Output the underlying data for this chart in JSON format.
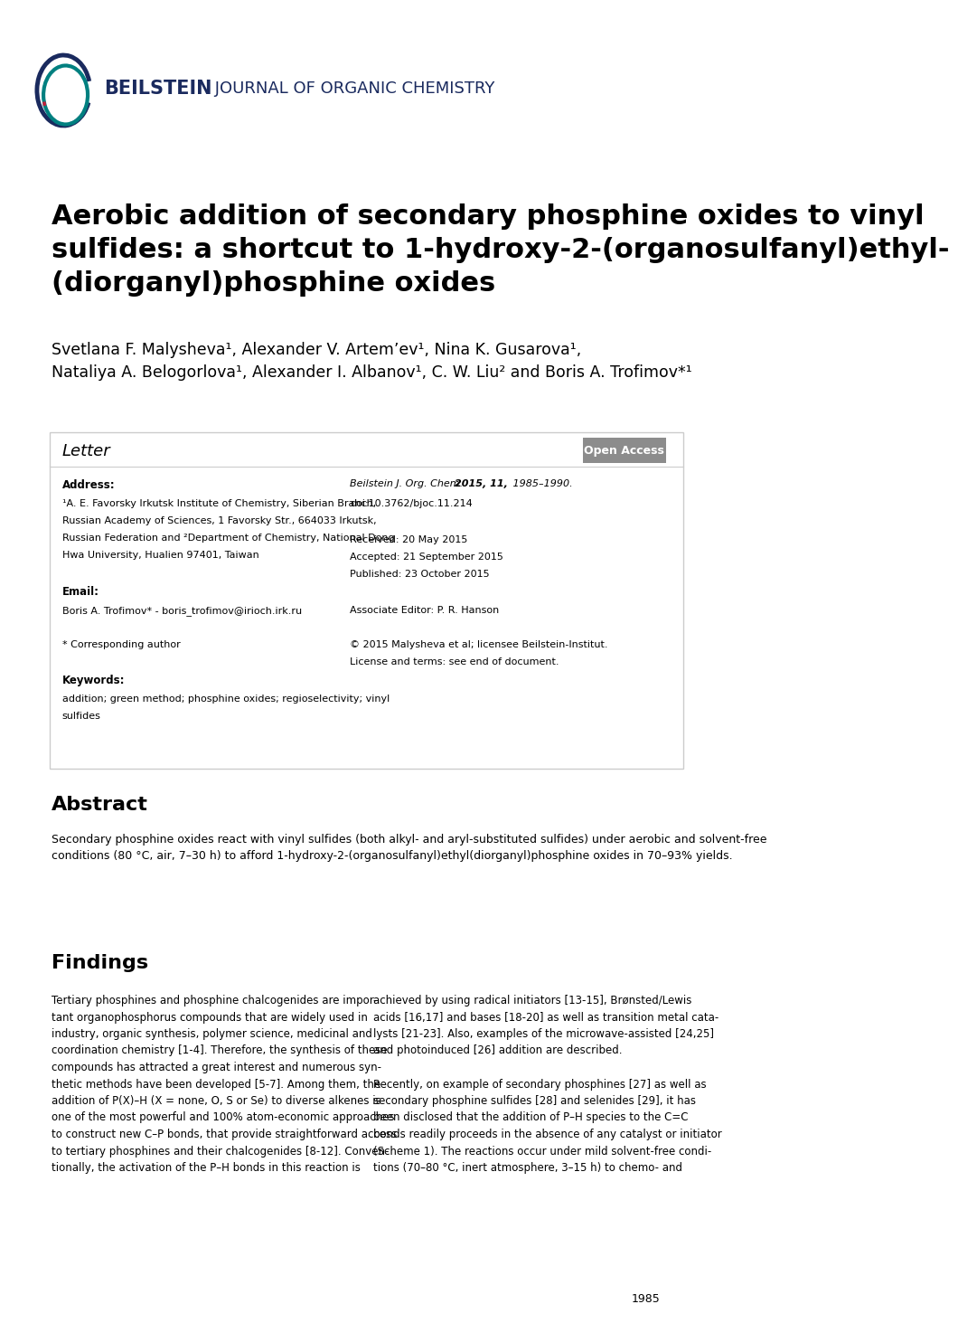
{
  "bg_color": "#ffffff",
  "header_logo_text": "BEILSTEIN JOURNAL OF ORGANIC CHEMISTRY",
  "title": "Aerobic addition of secondary phosphine oxides to vinyl\nsulfides: a shortcut to 1-hydroxy-2-(organosulfanyl)ethyl-\n(diorganyl)phosphine oxides",
  "authors_line1": "Svetlana F. Malysheva¹, Alexander V. Artem’ev¹, Nina K. Gusarova¹,",
  "authors_line2": "Nataliya A. Belogorlova¹, Alexander I. Albanov¹, C. W. Liu² and Boris A. Trofimov*¹",
  "letter_label": "Letter",
  "open_access_text": "Open Access",
  "open_access_bg": "#8c8c8c",
  "open_access_color": "#ffffff",
  "address_label": "Address:",
  "address_lines": [
    "¹A. E. Favorsky Irkutsk Institute of Chemistry, Siberian Branch,",
    "Russian Academy of Sciences, 1 Favorsky Str., 664033 Irkutsk,",
    "Russian Federation and ²Department of Chemistry, National Dong",
    "Hwa University, Hualien 97401, Taiwan"
  ],
  "email_label": "Email:",
  "email_line": "Boris A. Trofimov* - boris_trofimov@irioch.irk.ru",
  "corresponding_label": "* Corresponding author",
  "keywords_label": "Keywords:",
  "keywords_line1": "addition; green method; phosphine oxides; regioselectivity; vinyl",
  "keywords_line2": "sulfides",
  "journal_ref": "Beilstein J. Org. Chem. 2015, 11, 1985–1990.",
  "doi": "doi:10.3762/bjoc.11.214",
  "received": "Received: 20 May 2015",
  "accepted": "Accepted: 21 September 2015",
  "published": "Published: 23 October 2015",
  "assoc_editor": "Associate Editor: P. R. Hanson",
  "copyright": "© 2015 Malysheva et al; licensee Beilstein-Institut.",
  "license": "License and terms: see end of document.",
  "abstract_label": "Abstract",
  "abstract_text": "Secondary phosphine oxides react with vinyl sulfides (both alkyl- and aryl-substituted sulfides) under aerobic and solvent-free\nconditions (80 °C, air, 7–30 h) to afford 1-hydroxy-2-(organosulfanyl)ethyl(diorganyl)phosphine oxides in 70–93% yields.",
  "findings_label": "Findings",
  "findings_col1": "Tertiary phosphines and phosphine chalcogenides are impor-\ntant organophosphorus compounds that are widely used in\nindustry, organic synthesis, polymer science, medicinal and\ncoordination chemistry [1-4]. Therefore, the synthesis of these\ncompounds has attracted a great interest and numerous syn-\nthetic methods have been developed [5-7]. Among them, the\naddition of P(X)–H (X = none, O, S or Se) to diverse alkenes is\none of the most powerful and 100% atom-economic approaches\nto construct new C–P bonds, that provide straightforward access\nto tertiary phosphines and their chalcogenides [8-12]. Conven-\ntionally, the activation of the P–H bonds in this reaction is",
  "findings_col2": "achieved by using radical initiators [13-15], Brønsted/Lewis\nacids [16,17] and bases [18-20] as well as transition metal cata-\nlysts [21-23]. Also, examples of the microwave-assisted [24,25]\nand photoinduced [26] addition are described.\n\nRecently, on example of secondary phosphines [27] as well as\nsecondary phosphine sulfides [28] and selenides [29], it has\nbeen disclosed that the addition of P–H species to the C=C\nbonds readily proceeds in the absence of any catalyst or initiator\n(Scheme 1). The reactions occur under mild solvent-free condi-\ntions (70–80 °C, inert atmosphere, 3–15 h) to chemo- and",
  "page_number": "1985",
  "box_border_color": "#cccccc",
  "text_color": "#000000",
  "header_color": "#1a2a5e",
  "beilstein_bold_color": "#1a2a5e"
}
